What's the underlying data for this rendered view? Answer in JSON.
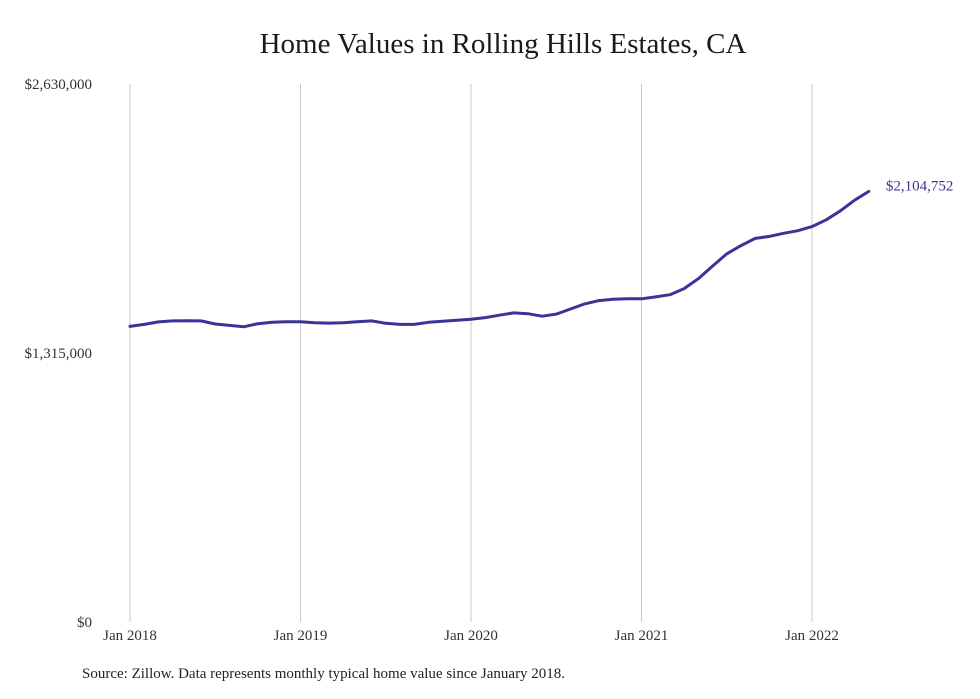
{
  "colors": {
    "line": "#3a3496",
    "grid": "#c9c9c9",
    "end_label": "#3a3496"
  },
  "source_note": "Source: Zillow. Data represents monthly typical home value since January 2018.",
  "chart_data": {
    "type": "line",
    "title": "Home Values in Rolling Hills Estates, CA",
    "xlabel": "",
    "ylabel": "",
    "ylim": [
      0,
      2630000
    ],
    "y_ticks": [
      {
        "value": 0,
        "label": "$0"
      },
      {
        "value": 1315000,
        "label": "$1,315,000"
      },
      {
        "value": 2630000,
        "label": "$2,630,000"
      }
    ],
    "x_ticks": [
      {
        "value": "2018-01",
        "label": "Jan 2018"
      },
      {
        "value": "2019-01",
        "label": "Jan 2019"
      },
      {
        "value": "2020-01",
        "label": "Jan 2020"
      },
      {
        "value": "2021-01",
        "label": "Jan 2021"
      },
      {
        "value": "2022-01",
        "label": "Jan 2022"
      }
    ],
    "vertical_grid": true,
    "end_label": "$2,104,752",
    "series": [
      {
        "x": [
          "2018-01",
          "2018-02",
          "2018-03",
          "2018-04",
          "2018-05",
          "2018-06",
          "2018-07",
          "2018-08",
          "2018-09",
          "2018-10",
          "2018-11",
          "2018-12",
          "2019-01",
          "2019-02",
          "2019-03",
          "2019-04",
          "2019-05",
          "2019-06",
          "2019-07",
          "2019-08",
          "2019-09",
          "2019-10",
          "2019-11",
          "2019-12",
          "2020-01",
          "2020-02",
          "2020-03",
          "2020-04",
          "2020-05",
          "2020-06",
          "2020-07",
          "2020-08",
          "2020-09",
          "2020-10",
          "2020-11",
          "2020-12",
          "2021-01",
          "2021-02",
          "2021-03",
          "2021-04",
          "2021-05",
          "2021-06",
          "2021-07",
          "2021-08",
          "2021-09",
          "2021-10",
          "2021-11",
          "2021-12",
          "2022-01",
          "2022-02",
          "2022-03",
          "2022-04",
          "2022-05"
        ],
        "values": [
          1445000,
          1455000,
          1467000,
          1472000,
          1473000,
          1472000,
          1457000,
          1450000,
          1443000,
          1458000,
          1465000,
          1468000,
          1468000,
          1463000,
          1461000,
          1463000,
          1468000,
          1472000,
          1460000,
          1455000,
          1455000,
          1465000,
          1470000,
          1475000,
          1480000,
          1488000,
          1500000,
          1511000,
          1507000,
          1495000,
          1505000,
          1530000,
          1555000,
          1571000,
          1578000,
          1580000,
          1580000,
          1589000,
          1600000,
          1630000,
          1678000,
          1740000,
          1800000,
          1840000,
          1875000,
          1885000,
          1900000,
          1913000,
          1933000,
          1966000,
          2010000,
          2062000,
          2104752
        ]
      }
    ]
  }
}
